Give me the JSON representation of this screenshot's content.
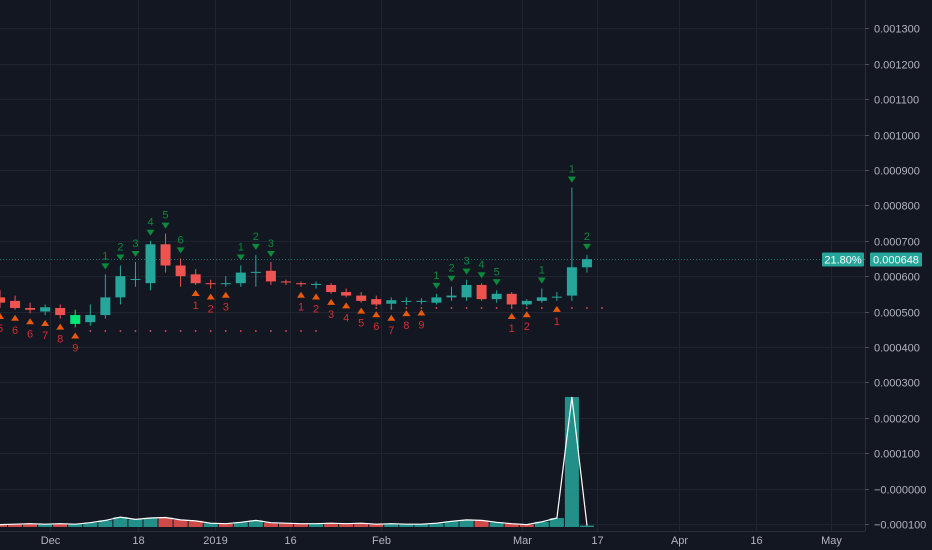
{
  "chart_data": {
    "type": "candlestick",
    "price_axis": {
      "ylim": [
        -0.00012,
        0.00138
      ],
      "ticks": [
        0.0013,
        0.0012,
        0.0011,
        0.001,
        0.0009,
        0.0008,
        0.0007,
        0.0006,
        0.0005,
        0.0004,
        0.0003,
        0.0002,
        0.0001,
        0,
        -0.0001
      ],
      "tick_labels": [
        "0.001300",
        "0.001200",
        "0.001100",
        "0.001000",
        "0.000900",
        "0.000800",
        "0.000700",
        "0.000600",
        "0.000500",
        "0.000400",
        "0.000300",
        "0.000200",
        "0.000100",
        "−0.000000",
        "−0.000100"
      ]
    },
    "x_axis": {
      "labels": [
        {
          "text": "Dec",
          "index": 3.3
        },
        {
          "text": "18",
          "index": 9.2
        },
        {
          "text": "2019",
          "index": 14.3
        },
        {
          "text": "16",
          "index": 19.3
        },
        {
          "text": "Feb",
          "index": 25.3
        },
        {
          "text": "Mar",
          "index": 34.7
        },
        {
          "text": "17",
          "index": 39.7
        },
        {
          "text": "Apr",
          "index": 45.1
        },
        {
          "text": "16",
          "index": 50.2
        },
        {
          "text": "May",
          "index": 55.2
        }
      ]
    },
    "last_price": {
      "text": "0.000648",
      "value": 0.000648,
      "change": "21.80%",
      "color": "#26a69a"
    },
    "colors": {
      "up": "#26a69a",
      "down": "#ef5350",
      "highlight": "#00e676",
      "signal_up": "#0b8a3c",
      "signal_down": "#e8590c",
      "count_label_down": "#d32f2f"
    },
    "candles": [
      {
        "o": 0.00054,
        "h": 0.00056,
        "l": 0.00051,
        "c": 0.000525
      },
      {
        "o": 0.00053,
        "h": 0.000545,
        "l": 0.000505,
        "c": 0.00051
      },
      {
        "o": 0.00051,
        "h": 0.000525,
        "l": 0.000495,
        "c": 0.000505
      },
      {
        "o": 0.0005,
        "h": 0.00052,
        "l": 0.00049,
        "c": 0.000512
      },
      {
        "o": 0.00051,
        "h": 0.00052,
        "l": 0.00048,
        "c": 0.00049
      },
      {
        "o": 0.00049,
        "h": 0.000505,
        "l": 0.000455,
        "c": 0.000465,
        "highlight": true
      },
      {
        "o": 0.00047,
        "h": 0.00052,
        "l": 0.00046,
        "c": 0.00049
      },
      {
        "o": 0.00049,
        "h": 0.000605,
        "l": 0.00048,
        "c": 0.00054
      },
      {
        "o": 0.00054,
        "h": 0.00063,
        "l": 0.00052,
        "c": 0.0006
      },
      {
        "o": 0.00059,
        "h": 0.00064,
        "l": 0.00057,
        "c": 0.000592
      },
      {
        "o": 0.00058,
        "h": 0.0007,
        "l": 0.00056,
        "c": 0.00069
      },
      {
        "o": 0.00069,
        "h": 0.00072,
        "l": 0.00061,
        "c": 0.00063
      },
      {
        "o": 0.00063,
        "h": 0.00065,
        "l": 0.00057,
        "c": 0.0006
      },
      {
        "o": 0.000605,
        "h": 0.00062,
        "l": 0.000575,
        "c": 0.00058
      },
      {
        "o": 0.00058,
        "h": 0.00059,
        "l": 0.000565,
        "c": 0.000578
      },
      {
        "o": 0.000578,
        "h": 0.0006,
        "l": 0.00057,
        "c": 0.00058
      },
      {
        "o": 0.00058,
        "h": 0.00063,
        "l": 0.00057,
        "c": 0.00061
      },
      {
        "o": 0.00061,
        "h": 0.00066,
        "l": 0.00057,
        "c": 0.000612
      },
      {
        "o": 0.000615,
        "h": 0.00064,
        "l": 0.000575,
        "c": 0.000585
      },
      {
        "o": 0.000585,
        "h": 0.00059,
        "l": 0.000575,
        "c": 0.000582
      },
      {
        "o": 0.00058,
        "h": 0.000585,
        "l": 0.00057,
        "c": 0.000577
      },
      {
        "o": 0.000575,
        "h": 0.000585,
        "l": 0.000565,
        "c": 0.000578
      },
      {
        "o": 0.000575,
        "h": 0.00058,
        "l": 0.00055,
        "c": 0.000555
      },
      {
        "o": 0.000555,
        "h": 0.000565,
        "l": 0.00054,
        "c": 0.000545
      },
      {
        "o": 0.000545,
        "h": 0.000555,
        "l": 0.000525,
        "c": 0.00053
      },
      {
        "o": 0.000535,
        "h": 0.000545,
        "l": 0.000515,
        "c": 0.00052
      },
      {
        "o": 0.000522,
        "h": 0.00054,
        "l": 0.000505,
        "c": 0.000532
      },
      {
        "o": 0.00053,
        "h": 0.00054,
        "l": 0.000518,
        "c": 0.00053
      },
      {
        "o": 0.000528,
        "h": 0.000538,
        "l": 0.00052,
        "c": 0.00053
      },
      {
        "o": 0.000525,
        "h": 0.00055,
        "l": 0.00052,
        "c": 0.00054
      },
      {
        "o": 0.00054,
        "h": 0.00057,
        "l": 0.00053,
        "c": 0.000545
      },
      {
        "o": 0.00054,
        "h": 0.00059,
        "l": 0.00053,
        "c": 0.000575
      },
      {
        "o": 0.000575,
        "h": 0.00058,
        "l": 0.00053,
        "c": 0.000535
      },
      {
        "o": 0.000535,
        "h": 0.00056,
        "l": 0.000525,
        "c": 0.00055
      },
      {
        "o": 0.00055,
        "h": 0.000555,
        "l": 0.00051,
        "c": 0.00052
      },
      {
        "o": 0.00052,
        "h": 0.000535,
        "l": 0.000515,
        "c": 0.00053
      },
      {
        "o": 0.00053,
        "h": 0.000565,
        "l": 0.000525,
        "c": 0.00054
      },
      {
        "o": 0.00054,
        "h": 0.000555,
        "l": 0.00053,
        "c": 0.000542
      },
      {
        "o": 0.000545,
        "h": 0.00085,
        "l": 0.00053,
        "c": 0.000625
      },
      {
        "o": 0.000625,
        "h": 0.00066,
        "l": 0.00061,
        "c": 0.000648
      }
    ],
    "signals_above": [
      {
        "index": 7,
        "label": "1"
      },
      {
        "index": 8,
        "label": "2"
      },
      {
        "index": 9,
        "label": "3"
      },
      {
        "index": 10,
        "label": "4"
      },
      {
        "index": 11,
        "label": "5"
      },
      {
        "index": 12,
        "label": "6"
      },
      {
        "index": 16,
        "label": "1"
      },
      {
        "index": 17,
        "label": "2"
      },
      {
        "index": 18,
        "label": "3"
      },
      {
        "index": 29,
        "label": "1"
      },
      {
        "index": 30,
        "label": "2"
      },
      {
        "index": 31,
        "label": "3"
      },
      {
        "index": 32,
        "label": "4"
      },
      {
        "index": 33,
        "label": "5"
      },
      {
        "index": 36,
        "label": "1"
      },
      {
        "index": 38,
        "label": "1"
      },
      {
        "index": 39,
        "label": "2"
      }
    ],
    "signals_below": [
      {
        "index": 0,
        "label": "5"
      },
      {
        "index": 1,
        "label": "6"
      },
      {
        "index": 2,
        "label": "6"
      },
      {
        "index": 3,
        "label": "7"
      },
      {
        "index": 4,
        "label": "8"
      },
      {
        "index": 5,
        "label": "9"
      },
      {
        "index": 13,
        "label": "1"
      },
      {
        "index": 14,
        "label": "2"
      },
      {
        "index": 15,
        "label": "3"
      },
      {
        "index": 20,
        "label": "1"
      },
      {
        "index": 21,
        "label": "2"
      },
      {
        "index": 22,
        "label": "3"
      },
      {
        "index": 23,
        "label": "4"
      },
      {
        "index": 24,
        "label": "5"
      },
      {
        "index": 25,
        "label": "6"
      },
      {
        "index": 26,
        "label": "7"
      },
      {
        "index": 27,
        "label": "8"
      },
      {
        "index": 28,
        "label": "9"
      },
      {
        "index": 34,
        "label": "1"
      },
      {
        "index": 35,
        "label": "2"
      },
      {
        "index": 37,
        "label": "1"
      }
    ],
    "support_dots": [
      {
        "from": 6,
        "to": 21,
        "value": 0.000445
      },
      {
        "from": 25,
        "to": 40,
        "value": 0.00051
      }
    ],
    "volume": {
      "ymax": 1.0,
      "values": [
        0.1,
        0.12,
        0.14,
        0.12,
        0.14,
        0.12,
        0.18,
        0.28,
        0.42,
        0.32,
        0.38,
        0.4,
        0.3,
        0.26,
        0.16,
        0.14,
        0.2,
        0.28,
        0.18,
        0.16,
        0.14,
        0.14,
        0.16,
        0.14,
        0.16,
        0.12,
        0.14,
        0.12,
        0.12,
        0.16,
        0.24,
        0.3,
        0.28,
        0.2,
        0.14,
        0.1,
        0.22,
        0.38,
        5.5,
        0.06
      ],
      "dir": [
        "d",
        "d",
        "d",
        "u",
        "d",
        "u",
        "u",
        "u",
        "u",
        "u",
        "u",
        "d",
        "d",
        "d",
        "u",
        "d",
        "u",
        "u",
        "d",
        "d",
        "d",
        "u",
        "d",
        "d",
        "d",
        "d",
        "u",
        "u",
        "u",
        "u",
        "u",
        "u",
        "d",
        "u",
        "d",
        "d",
        "u",
        "u",
        "u",
        "u"
      ]
    }
  }
}
